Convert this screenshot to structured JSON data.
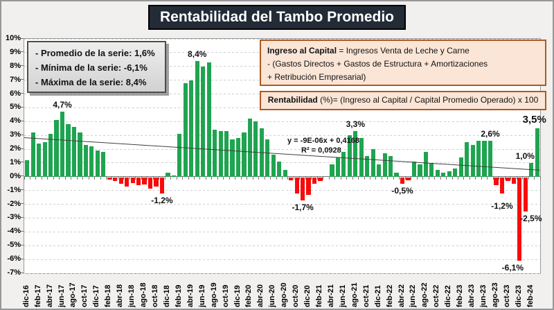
{
  "title": "Rentabilidad del Tambo Promedio",
  "stats_box": {
    "line1": "- Promedio de la serie: 1,6%",
    "line2": "- Mínima de la serie: -6,1%",
    "line3": "- Máxima de la serie: 8,4%"
  },
  "income_box": {
    "term": "Ingreso al Capital",
    "line1_rest": " = Ingresos Venta de Leche y Carne",
    "line2": "- (Gastos Directos + Gastos de Estructura  + Amortizaciones",
    "line3": "+  Retribución Empresarial)"
  },
  "rent_box": {
    "term": "Rentabilidad",
    "rest": " (%)= (Ingreso al Capital / Capital Promedio Operado) x 100"
  },
  "trend": {
    "equation": "y = -9E-06x + 0,4168",
    "r2": "R² = 0,0928"
  },
  "chart_data": {
    "type": "bar",
    "title": "Rentabilidad del Tambo Promedio",
    "ylabel": "Rentabilidad (%)",
    "ylim": [
      -7,
      10
    ],
    "y_tick_step": 1,
    "x_tick_every": 2,
    "grid": true,
    "months": [
      "dic-16",
      "ene-17",
      "feb-17",
      "mar-17",
      "abr-17",
      "may-17",
      "jun-17",
      "jul-17",
      "ago-17",
      "sep-17",
      "oct-17",
      "nov-17",
      "dic-17",
      "ene-18",
      "feb-18",
      "mar-18",
      "abr-18",
      "may-18",
      "jun-18",
      "jul-18",
      "ago-18",
      "sep-18",
      "oct-18",
      "nov-18",
      "dic-18",
      "ene-19",
      "feb-19",
      "mar-19",
      "abr-19",
      "may-19",
      "jun-19",
      "jul-19",
      "ago-19",
      "sep-19",
      "oct-19",
      "nov-19",
      "dic-19",
      "ene-20",
      "feb-20",
      "mar-20",
      "abr-20",
      "may-20",
      "jun-20",
      "jul-20",
      "ago-20",
      "sep-20",
      "oct-20",
      "nov-20",
      "dic-20",
      "ene-21",
      "feb-21",
      "mar-21",
      "abr-21",
      "may-21",
      "jun-21",
      "jul-21",
      "ago-21",
      "sep-21",
      "oct-21",
      "nov-21",
      "dic-21",
      "ene-22",
      "feb-22",
      "mar-22",
      "abr-22",
      "may-22",
      "jun-22",
      "jul-22",
      "ago-22",
      "sep-22",
      "oct-22",
      "nov-22",
      "dic-22",
      "ene-23",
      "feb-23",
      "mar-23",
      "abr-23",
      "may-23",
      "jun-23",
      "jul-23",
      "ago-23",
      "sep-23",
      "oct-23",
      "nov-23",
      "dic-23",
      "ene-24",
      "feb-24",
      "mar-24"
    ],
    "values": [
      1.2,
      3.2,
      2.4,
      2.5,
      3.1,
      4.1,
      4.7,
      3.8,
      3.6,
      3.2,
      2.3,
      2.2,
      1.9,
      1.8,
      -0.2,
      -0.3,
      -0.5,
      -0.7,
      -0.45,
      -0.6,
      -0.55,
      -0.85,
      -0.7,
      -1.2,
      0.3,
      0.1,
      3.1,
      6.8,
      7.0,
      8.4,
      8.0,
      8.3,
      3.4,
      3.3,
      3.3,
      2.7,
      2.8,
      3.2,
      4.2,
      4.0,
      3.5,
      2.7,
      1.6,
      1.1,
      0.5,
      -0.25,
      -1.2,
      -1.7,
      -1.3,
      -0.5,
      -0.3,
      0.0,
      0.9,
      1.4,
      1.8,
      3.0,
      3.3,
      2.8,
      1.5,
      2.0,
      0.9,
      1.7,
      1.5,
      0.3,
      -0.5,
      -0.25,
      1.1,
      0.9,
      1.8,
      1.0,
      0.5,
      0.3,
      0.4,
      0.6,
      1.4,
      2.5,
      2.3,
      2.6,
      2.6,
      2.6,
      -0.6,
      -1.2,
      -0.3,
      -0.5,
      -6.1,
      -2.5,
      1.0,
      3.5
    ],
    "colors": {
      "positive": "#1FA450",
      "negative": "#F90B0B"
    },
    "trendline": {
      "start_pct": 2.88,
      "end_pct": 0.52,
      "equation": "y = -9E-06x + 0,4168",
      "r2": "R² = 0,0928"
    },
    "annotations": [
      {
        "text": "4,7%",
        "index": 6,
        "position": "above"
      },
      {
        "text": "8,4%",
        "index": 29,
        "position": "above"
      },
      {
        "text": "-1,2%",
        "index": 23,
        "position": "below"
      },
      {
        "text": "-1,7%",
        "index": 47,
        "position": "below"
      },
      {
        "text": "3,3%",
        "index": 56,
        "position": "above"
      },
      {
        "text": "-0,5%",
        "index": 64,
        "position": "below"
      },
      {
        "text": "2,6%",
        "index": 79,
        "position": "above"
      },
      {
        "text": "-1,2%",
        "index": 81,
        "position": "below",
        "dy": 8
      },
      {
        "text": "-6,1%",
        "index": 84,
        "position": "below",
        "dx": -10
      },
      {
        "text": "-2,5%",
        "index": 85,
        "position": "below",
        "dx": 8
      },
      {
        "text": "1,0%",
        "index": 86,
        "position": "above",
        "dx": -9
      },
      {
        "text": "3,5%",
        "index": 87,
        "position": "above",
        "dx": -4,
        "big": true
      }
    ]
  }
}
